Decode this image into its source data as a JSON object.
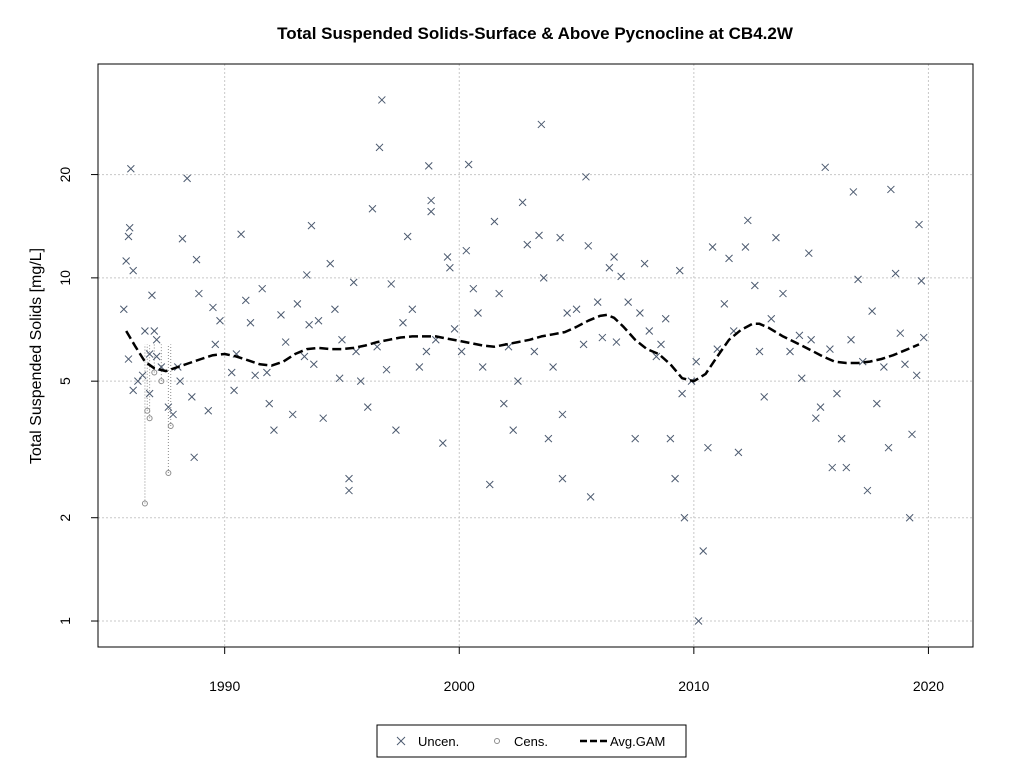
{
  "chart_data": {
    "type": "scatter",
    "title": "Total Suspended Solids-Surface & Above Pycnocline at CB4.2W",
    "xlabel": "",
    "ylabel": "Total Suspended Solids [mg/L]",
    "xlim": [
      1984.6,
      2021.9
    ],
    "ylim": [
      0.84,
      42
    ],
    "y_scale": "log",
    "x_ticks": [
      1990,
      2000,
      2010,
      2020
    ],
    "y_ticks": [
      1,
      2,
      5,
      10,
      20
    ],
    "grid": true,
    "legend_position": "bottom-center",
    "colors": {
      "uncensored": "#4d5b70",
      "censored": "#8c8c8c",
      "gam": "#000000",
      "grid": "#c8c8c8"
    },
    "legend": [
      {
        "label": "Uncen.",
        "marker": "x"
      },
      {
        "label": "Cens.",
        "marker": "o"
      },
      {
        "label": "Avg.GAM",
        "marker": "dashed-line"
      }
    ],
    "series": [
      {
        "name": "Uncen.",
        "points": [
          [
            1985.7,
            8.1
          ],
          [
            1985.8,
            11.2
          ],
          [
            1985.9,
            13.2
          ],
          [
            1985.95,
            14.0
          ],
          [
            1985.9,
            5.8
          ],
          [
            1986.0,
            20.8
          ],
          [
            1986.1,
            10.5
          ],
          [
            1986.1,
            4.7
          ],
          [
            1986.3,
            5.0
          ],
          [
            1986.5,
            5.2
          ],
          [
            1986.6,
            7.0
          ],
          [
            1986.8,
            6.0
          ],
          [
            1986.8,
            4.6
          ],
          [
            1986.9,
            8.9
          ],
          [
            1987.0,
            7.0
          ],
          [
            1987.1,
            6.6
          ],
          [
            1987.1,
            5.9
          ],
          [
            1987.3,
            5.5
          ],
          [
            1987.6,
            4.2
          ],
          [
            1987.8,
            4.0
          ],
          [
            1988.0,
            5.5
          ],
          [
            1988.1,
            5.0
          ],
          [
            1988.2,
            13.0
          ],
          [
            1988.4,
            19.5
          ],
          [
            1988.6,
            4.5
          ],
          [
            1988.7,
            3.0
          ],
          [
            1988.8,
            11.3
          ],
          [
            1988.9,
            9.0
          ],
          [
            1989.3,
            4.1
          ],
          [
            1989.5,
            8.2
          ],
          [
            1989.6,
            6.4
          ],
          [
            1989.8,
            7.5
          ],
          [
            1990.3,
            5.3
          ],
          [
            1990.4,
            4.7
          ],
          [
            1990.5,
            6.0
          ],
          [
            1990.7,
            13.4
          ],
          [
            1990.9,
            8.6
          ],
          [
            1991.1,
            7.4
          ],
          [
            1991.3,
            5.2
          ],
          [
            1991.6,
            9.3
          ],
          [
            1991.8,
            5.3
          ],
          [
            1991.9,
            4.3
          ],
          [
            1992.1,
            3.6
          ],
          [
            1992.4,
            7.8
          ],
          [
            1992.6,
            6.5
          ],
          [
            1992.9,
            4.0
          ],
          [
            1993.1,
            8.4
          ],
          [
            1993.4,
            5.9
          ],
          [
            1993.5,
            10.2
          ],
          [
            1993.6,
            7.3
          ],
          [
            1993.7,
            14.2
          ],
          [
            1993.8,
            5.6
          ],
          [
            1994.0,
            7.5
          ],
          [
            1994.2,
            3.9
          ],
          [
            1994.5,
            11.0
          ],
          [
            1994.7,
            8.1
          ],
          [
            1994.9,
            5.1
          ],
          [
            1995.0,
            6.6
          ],
          [
            1995.3,
            2.6
          ],
          [
            1995.3,
            2.4
          ],
          [
            1995.5,
            9.7
          ],
          [
            1995.6,
            6.1
          ],
          [
            1995.8,
            5.0
          ],
          [
            1996.1,
            4.2
          ],
          [
            1996.3,
            15.9
          ],
          [
            1996.5,
            6.3
          ],
          [
            1996.6,
            24.0
          ],
          [
            1996.7,
            33.0
          ],
          [
            1996.9,
            5.4
          ],
          [
            1997.1,
            9.6
          ],
          [
            1997.3,
            3.6
          ],
          [
            1997.6,
            7.4
          ],
          [
            1997.8,
            13.2
          ],
          [
            1998.0,
            8.1
          ],
          [
            1998.3,
            5.5
          ],
          [
            1998.6,
            6.1
          ],
          [
            1998.7,
            21.2
          ],
          [
            1998.8,
            16.8
          ],
          [
            1998.8,
            15.6
          ],
          [
            1999.0,
            6.6
          ],
          [
            1999.3,
            3.3
          ],
          [
            1999.5,
            11.5
          ],
          [
            1999.6,
            10.7
          ],
          [
            1999.8,
            7.1
          ],
          [
            2000.1,
            6.1
          ],
          [
            2000.3,
            12.0
          ],
          [
            2000.4,
            21.4
          ],
          [
            2000.6,
            9.3
          ],
          [
            2000.8,
            7.9
          ],
          [
            2001.0,
            5.5
          ],
          [
            2001.3,
            2.5
          ],
          [
            2001.5,
            14.6
          ],
          [
            2001.7,
            9.0
          ],
          [
            2001.9,
            4.3
          ],
          [
            2002.1,
            6.3
          ],
          [
            2002.3,
            3.6
          ],
          [
            2002.5,
            5.0
          ],
          [
            2002.7,
            16.6
          ],
          [
            2002.9,
            12.5
          ],
          [
            2003.2,
            6.1
          ],
          [
            2003.4,
            13.3
          ],
          [
            2003.5,
            28.0
          ],
          [
            2003.6,
            10.0
          ],
          [
            2003.8,
            3.4
          ],
          [
            2004.0,
            5.5
          ],
          [
            2004.3,
            13.1
          ],
          [
            2004.4,
            4.0
          ],
          [
            2004.4,
            2.6
          ],
          [
            2004.6,
            7.9
          ],
          [
            2005.0,
            8.1
          ],
          [
            2005.3,
            6.4
          ],
          [
            2005.4,
            19.7
          ],
          [
            2005.5,
            12.4
          ],
          [
            2005.6,
            2.3
          ],
          [
            2005.9,
            8.5
          ],
          [
            2006.1,
            6.7
          ],
          [
            2006.4,
            10.7
          ],
          [
            2006.6,
            11.5
          ],
          [
            2006.7,
            6.5
          ],
          [
            2006.9,
            10.1
          ],
          [
            2007.2,
            8.5
          ],
          [
            2007.5,
            3.4
          ],
          [
            2007.7,
            7.9
          ],
          [
            2007.9,
            11.0
          ],
          [
            2008.1,
            7.0
          ],
          [
            2008.4,
            5.9
          ],
          [
            2008.6,
            6.4
          ],
          [
            2008.8,
            7.6
          ],
          [
            2009.0,
            3.4
          ],
          [
            2009.2,
            2.6
          ],
          [
            2009.4,
            10.5
          ],
          [
            2009.5,
            4.6
          ],
          [
            2009.6,
            2.0
          ],
          [
            2009.9,
            5.0
          ],
          [
            2010.1,
            5.7
          ],
          [
            2010.2,
            1.0
          ],
          [
            2010.4,
            1.6
          ],
          [
            2010.6,
            3.2
          ],
          [
            2010.8,
            12.3
          ],
          [
            2011.0,
            6.2
          ],
          [
            2011.3,
            8.4
          ],
          [
            2011.5,
            11.4
          ],
          [
            2011.7,
            7.0
          ],
          [
            2011.9,
            3.1
          ],
          [
            2012.2,
            12.3
          ],
          [
            2012.3,
            14.7
          ],
          [
            2012.6,
            9.5
          ],
          [
            2012.8,
            6.1
          ],
          [
            2013.0,
            4.5
          ],
          [
            2013.3,
            7.6
          ],
          [
            2013.5,
            13.1
          ],
          [
            2013.8,
            9.0
          ],
          [
            2014.1,
            6.1
          ],
          [
            2014.5,
            6.8
          ],
          [
            2014.6,
            5.1
          ],
          [
            2014.9,
            11.8
          ],
          [
            2015.0,
            6.6
          ],
          [
            2015.2,
            3.9
          ],
          [
            2015.4,
            4.2
          ],
          [
            2015.6,
            21.0
          ],
          [
            2015.8,
            6.2
          ],
          [
            2015.9,
            2.8
          ],
          [
            2016.1,
            4.6
          ],
          [
            2016.3,
            3.4
          ],
          [
            2016.5,
            2.8
          ],
          [
            2016.7,
            6.6
          ],
          [
            2016.8,
            17.8
          ],
          [
            2017.0,
            9.9
          ],
          [
            2017.2,
            5.7
          ],
          [
            2017.4,
            2.4
          ],
          [
            2017.6,
            8.0
          ],
          [
            2017.8,
            4.3
          ],
          [
            2018.1,
            5.5
          ],
          [
            2018.3,
            3.2
          ],
          [
            2018.4,
            18.1
          ],
          [
            2018.6,
            10.3
          ],
          [
            2018.8,
            6.9
          ],
          [
            2019.0,
            5.6
          ],
          [
            2019.2,
            2.0
          ],
          [
            2019.3,
            3.5
          ],
          [
            2019.5,
            5.2
          ],
          [
            2019.6,
            14.3
          ],
          [
            2019.7,
            9.8
          ],
          [
            2019.8,
            6.7
          ]
        ]
      },
      {
        "name": "Cens.",
        "points": [
          [
            1986.6,
            2.2
          ],
          [
            1986.7,
            4.1
          ],
          [
            1986.8,
            3.9
          ],
          [
            1987.0,
            5.3
          ],
          [
            1987.3,
            5.0
          ],
          [
            1987.6,
            2.7
          ],
          [
            1987.7,
            3.7
          ]
        ]
      },
      {
        "name": "Avg.GAM",
        "points": [
          [
            1985.8,
            7.0
          ],
          [
            1986.2,
            6.3
          ],
          [
            1986.6,
            5.7
          ],
          [
            1987.0,
            5.45
          ],
          [
            1987.5,
            5.35
          ],
          [
            1988.0,
            5.5
          ],
          [
            1988.5,
            5.65
          ],
          [
            1989.0,
            5.8
          ],
          [
            1989.5,
            5.95
          ],
          [
            1990.0,
            6.0
          ],
          [
            1990.5,
            5.9
          ],
          [
            1991.0,
            5.75
          ],
          [
            1991.5,
            5.6
          ],
          [
            1992.0,
            5.55
          ],
          [
            1992.5,
            5.7
          ],
          [
            1993.0,
            6.0
          ],
          [
            1993.5,
            6.2
          ],
          [
            1994.0,
            6.25
          ],
          [
            1994.5,
            6.2
          ],
          [
            1995.0,
            6.2
          ],
          [
            1995.5,
            6.25
          ],
          [
            1996.0,
            6.35
          ],
          [
            1996.5,
            6.5
          ],
          [
            1997.0,
            6.6
          ],
          [
            1997.5,
            6.7
          ],
          [
            1998.0,
            6.75
          ],
          [
            1998.5,
            6.75
          ],
          [
            1999.0,
            6.75
          ],
          [
            1999.5,
            6.65
          ],
          [
            2000.0,
            6.55
          ],
          [
            2000.5,
            6.45
          ],
          [
            2001.0,
            6.35
          ],
          [
            2001.5,
            6.3
          ],
          [
            2002.0,
            6.4
          ],
          [
            2002.5,
            6.5
          ],
          [
            2003.0,
            6.6
          ],
          [
            2003.5,
            6.75
          ],
          [
            2004.0,
            6.85
          ],
          [
            2004.5,
            6.95
          ],
          [
            2005.0,
            7.2
          ],
          [
            2005.5,
            7.5
          ],
          [
            2006.0,
            7.75
          ],
          [
            2006.3,
            7.8
          ],
          [
            2006.6,
            7.65
          ],
          [
            2007.0,
            7.2
          ],
          [
            2007.5,
            6.6
          ],
          [
            2008.0,
            6.2
          ],
          [
            2008.5,
            6.0
          ],
          [
            2009.0,
            5.6
          ],
          [
            2009.5,
            5.1
          ],
          [
            2010.0,
            5.0
          ],
          [
            2010.5,
            5.25
          ],
          [
            2011.0,
            5.9
          ],
          [
            2011.5,
            6.6
          ],
          [
            2012.0,
            7.05
          ],
          [
            2012.5,
            7.35
          ],
          [
            2012.8,
            7.35
          ],
          [
            2013.2,
            7.15
          ],
          [
            2013.8,
            6.75
          ],
          [
            2014.5,
            6.4
          ],
          [
            2015.0,
            6.15
          ],
          [
            2015.5,
            5.9
          ],
          [
            2016.0,
            5.7
          ],
          [
            2016.5,
            5.65
          ],
          [
            2017.0,
            5.65
          ],
          [
            2017.5,
            5.7
          ],
          [
            2018.0,
            5.8
          ],
          [
            2018.5,
            5.95
          ],
          [
            2019.0,
            6.15
          ],
          [
            2019.6,
            6.4
          ]
        ]
      }
    ]
  }
}
